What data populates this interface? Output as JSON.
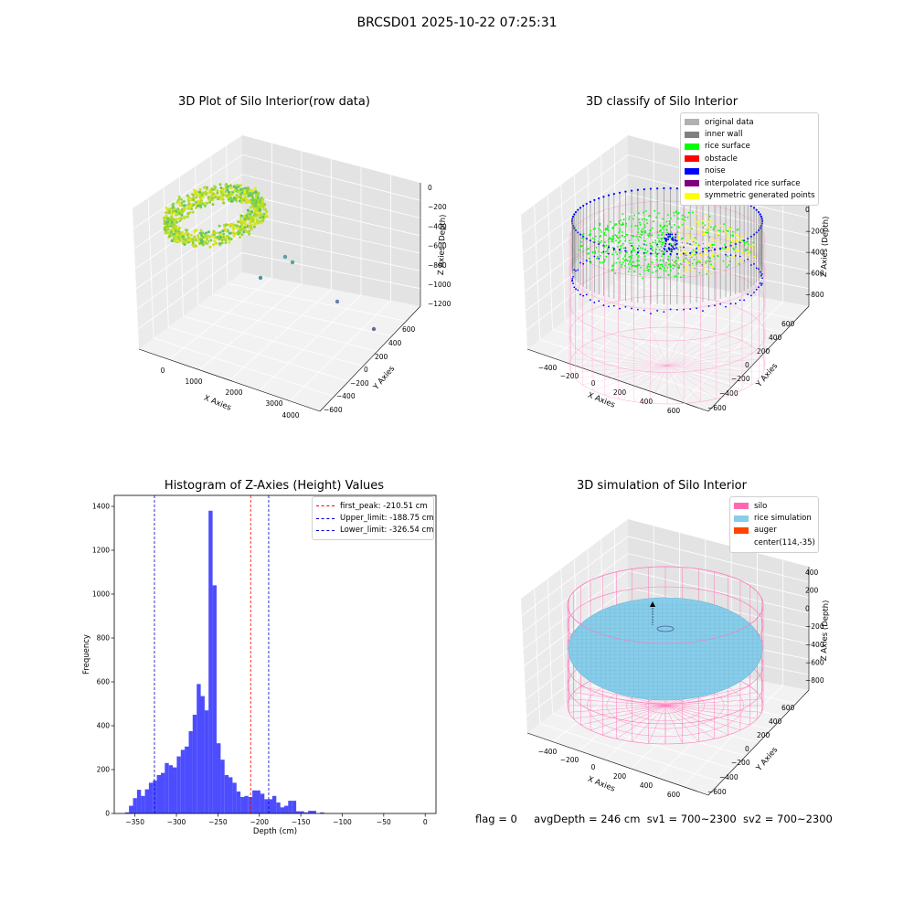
{
  "suptitle": "BRCSD01 2025-10-22 07:25:31",
  "footer": {
    "flag": "flag = 0",
    "avg_depth": "avgDepth = 246 cm",
    "sv1": "sv1 = 700~2300",
    "sv2": "sv2 = 700~2300"
  },
  "colors": {
    "silo": "#ff69b4",
    "rice_simulation": "#87ceeb",
    "auger": "#ff4500",
    "original_data": "#b0b0b0",
    "inner_wall": "#808080",
    "rice_surface": "#00ff00",
    "obstacle": "#ff0000",
    "noise": "#0000ff",
    "interpolated_rice_surface": "#800080",
    "symmetric_generated_points": "#ffff00",
    "histogram_bars": "#4d4dff",
    "first_peak_line": "#ff0000",
    "limit_lines": "#0000cc"
  },
  "chart_data": [
    {
      "type": "scatter",
      "projection": "3d",
      "title": "3D Plot of Silo Interior(row data)",
      "xlabel": "X Axies",
      "ylabel": "Y Axies",
      "zlabel": "Z Axies (Depth)",
      "x_ticks": [
        "0",
        "1000",
        "2000",
        "3000",
        "4000"
      ],
      "y_ticks": [
        "600",
        "400",
        "200",
        "0",
        "−200",
        "−400",
        "−600"
      ],
      "z_ticks": [
        "0",
        "−200",
        "−400",
        "−600",
        "−800",
        "−1000",
        "−1200"
      ],
      "outliers": [
        {
          "x": 2000,
          "y": 150,
          "z": -780
        },
        {
          "x": 2400,
          "y": 200,
          "z": -820
        },
        {
          "x": 1600,
          "y": 0,
          "z": -960
        },
        {
          "x": 3500,
          "y": -80,
          "z": -1120
        },
        {
          "x": 4300,
          "y": -300,
          "z": -1200
        }
      ],
      "colormap": "viridis-yellow",
      "grid": true
    },
    {
      "type": "scatter",
      "projection": "3d",
      "title": "3D classify of Silo Interior",
      "xlabel": "X Axies",
      "ylabel": "Y Axies",
      "zlabel": "Z Axies (Depth)",
      "x_ticks": [
        "−400",
        "−200",
        "0",
        "200",
        "400",
        "600"
      ],
      "y_ticks": [
        "600",
        "400",
        "200",
        "0",
        "−200",
        "−400",
        "−600"
      ],
      "z_ticks": [
        "200",
        "0",
        "−200",
        "−400",
        "−600",
        "−800"
      ],
      "legend": [
        "original data",
        "inner wall",
        "rice surface",
        "obstacle",
        "noise",
        "interpolated rice surface",
        "symmetric generated points"
      ],
      "legend_position": "top-right",
      "grid": true
    },
    {
      "type": "bar",
      "title": "Histogram of Z-Axies (Height) Values",
      "xlabel": "Depth (cm)",
      "ylabel": "Frequency",
      "xlim": [
        -375,
        13
      ],
      "ylim": [
        0,
        1450
      ],
      "x_ticks": [
        "−350",
        "−300",
        "−250",
        "−200",
        "−150",
        "−100",
        "−50",
        "0"
      ],
      "x_tick_values": [
        -350,
        -300,
        -250,
        -200,
        -150,
        -100,
        -50,
        0
      ],
      "y_ticks": [
        "0",
        "200",
        "400",
        "600",
        "800",
        "1000",
        "1200",
        "1400"
      ],
      "y_tick_values": [
        0,
        200,
        400,
        600,
        800,
        1000,
        1200,
        1400
      ],
      "bin_start": -362,
      "bin_width": 4.8,
      "values": [
        5,
        35,
        70,
        108,
        80,
        110,
        140,
        150,
        175,
        185,
        230,
        220,
        210,
        260,
        290,
        305,
        375,
        450,
        590,
        535,
        470,
        1380,
        1040,
        320,
        245,
        175,
        165,
        140,
        100,
        75,
        80,
        75,
        105,
        105,
        90,
        65,
        65,
        80,
        50,
        28,
        35,
        58,
        58,
        10,
        10,
        5,
        12,
        12,
        0,
        5,
        0
      ],
      "vlines": [
        {
          "label": "first_peak: -210.51 cm",
          "x": -210.51,
          "color": "#ff0000"
        },
        {
          "label": "Upper_limit: -188.75 cm",
          "x": -188.75,
          "color": "#0000cc"
        },
        {
          "label": "Lower_limit: -326.54 cm",
          "x": -326.54,
          "color": "#0000cc"
        }
      ],
      "legend_position": "top-right",
      "grid": false
    },
    {
      "type": "surface",
      "projection": "3d",
      "title": "3D simulation of Silo Interior",
      "xlabel": "X Axies",
      "ylabel": "Y Axies",
      "zlabel": "Z Axies (Depth)",
      "x_ticks": [
        "−400",
        "−200",
        "0",
        "200",
        "400",
        "600"
      ],
      "y_ticks": [
        "600",
        "400",
        "200",
        "0",
        "−200",
        "−400",
        "−600"
      ],
      "z_ticks": [
        "400",
        "200",
        "0",
        "−200",
        "−400",
        "−600",
        "−800"
      ],
      "legend": [
        "silo",
        "rice simulation",
        "auger",
        "center(114,-35)"
      ],
      "legend_position": "top-right",
      "grid": true
    }
  ]
}
